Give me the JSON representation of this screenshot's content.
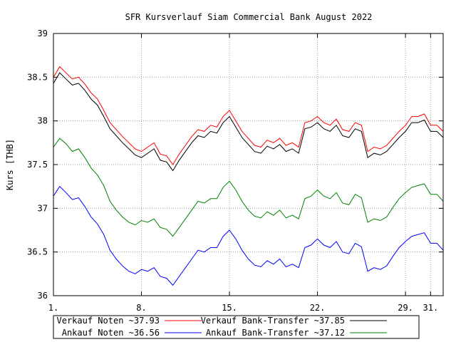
{
  "chart_data": {
    "type": "line",
    "title": "SFR Kursverlauf Siam Commercial Bank August 2022",
    "ylabel": "Kurs [THB]",
    "xlabel": "",
    "xlim": [
      1,
      32
    ],
    "ylim": [
      36,
      39
    ],
    "x_ticks": [
      {
        "x": 1,
        "label": "1."
      },
      {
        "x": 8,
        "label": "8."
      },
      {
        "x": 15,
        "label": "15."
      },
      {
        "x": 22,
        "label": "22."
      },
      {
        "x": 29,
        "label": "29."
      },
      {
        "x": 31,
        "label": "31."
      }
    ],
    "y_ticks": [
      36,
      36.5,
      37,
      37.5,
      38,
      38.5,
      39
    ],
    "grid": true,
    "legend_position": "bottom",
    "series": [
      {
        "name": "Verkauf Noten ~37.93",
        "color": "#ff0000",
        "x": [
          1,
          1.5,
          2,
          2.5,
          3,
          3.5,
          4,
          4.5,
          5,
          5.5,
          6,
          6.5,
          7,
          7.5,
          8,
          8.5,
          9,
          9.5,
          10,
          10.5,
          11,
          11.5,
          12,
          12.5,
          13,
          13.5,
          14,
          14.5,
          15,
          15.5,
          16,
          16.5,
          17,
          17.5,
          18,
          18.5,
          19,
          19.5,
          20,
          20.5,
          21,
          21.5,
          22,
          22.5,
          23,
          23.5,
          24,
          24.5,
          25,
          25.5,
          26,
          26.5,
          27,
          27.5,
          28,
          28.5,
          29,
          29.5,
          30,
          30.5,
          31,
          31.5,
          32
        ],
        "values": [
          38.5,
          38.62,
          38.55,
          38.48,
          38.5,
          38.42,
          38.32,
          38.25,
          38.12,
          37.98,
          37.9,
          37.82,
          37.75,
          37.68,
          37.65,
          37.7,
          37.75,
          37.62,
          37.6,
          37.5,
          37.62,
          37.72,
          37.82,
          37.9,
          37.88,
          37.95,
          37.93,
          38.05,
          38.12,
          38.0,
          37.88,
          37.8,
          37.72,
          37.7,
          37.78,
          37.75,
          37.8,
          37.72,
          37.75,
          37.7,
          37.98,
          38.0,
          38.05,
          37.98,
          37.95,
          38.02,
          37.9,
          37.88,
          37.98,
          37.95,
          37.65,
          37.7,
          37.68,
          37.72,
          37.8,
          37.88,
          37.95,
          38.05,
          38.05,
          38.08,
          37.95,
          37.95,
          37.88
        ]
      },
      {
        "name": "Verkauf Bank-Transfer ~37.85",
        "color": "#000000",
        "x": [
          1,
          1.5,
          2,
          2.5,
          3,
          3.5,
          4,
          4.5,
          5,
          5.5,
          6,
          6.5,
          7,
          7.5,
          8,
          8.5,
          9,
          9.5,
          10,
          10.5,
          11,
          11.5,
          12,
          12.5,
          13,
          13.5,
          14,
          14.5,
          15,
          15.5,
          16,
          16.5,
          17,
          17.5,
          18,
          18.5,
          19,
          19.5,
          20,
          20.5,
          21,
          21.5,
          22,
          22.5,
          23,
          23.5,
          24,
          24.5,
          25,
          25.5,
          26,
          26.5,
          27,
          27.5,
          28,
          28.5,
          29,
          29.5,
          30,
          30.5,
          31,
          31.5,
          32
        ],
        "values": [
          38.43,
          38.55,
          38.48,
          38.41,
          38.43,
          38.35,
          38.25,
          38.18,
          38.05,
          37.91,
          37.83,
          37.75,
          37.68,
          37.61,
          37.58,
          37.63,
          37.68,
          37.55,
          37.53,
          37.43,
          37.55,
          37.65,
          37.75,
          37.83,
          37.81,
          37.88,
          37.86,
          37.98,
          38.05,
          37.93,
          37.81,
          37.73,
          37.65,
          37.63,
          37.71,
          37.68,
          37.73,
          37.65,
          37.68,
          37.63,
          37.91,
          37.93,
          37.98,
          37.91,
          37.88,
          37.95,
          37.83,
          37.81,
          37.91,
          37.88,
          37.58,
          37.63,
          37.61,
          37.65,
          37.73,
          37.81,
          37.88,
          37.98,
          37.98,
          38.01,
          37.88,
          37.88,
          37.81
        ]
      },
      {
        "name": "Ankauf Noten ~36.56",
        "color": "#0000ff",
        "x": [
          1,
          1.5,
          2,
          2.5,
          3,
          3.5,
          4,
          4.5,
          5,
          5.5,
          6,
          6.5,
          7,
          7.5,
          8,
          8.5,
          9,
          9.5,
          10,
          10.5,
          11,
          11.5,
          12,
          12.5,
          13,
          13.5,
          14,
          14.5,
          15,
          15.5,
          16,
          16.5,
          17,
          17.5,
          18,
          18.5,
          19,
          19.5,
          20,
          20.5,
          21,
          21.5,
          22,
          22.5,
          23,
          23.5,
          24,
          24.5,
          25,
          25.5,
          26,
          26.5,
          27,
          27.5,
          28,
          28.5,
          29,
          29.5,
          30,
          30.5,
          31,
          31.5,
          32
        ],
        "values": [
          37.14,
          37.25,
          37.18,
          37.1,
          37.12,
          37.02,
          36.9,
          36.82,
          36.7,
          36.52,
          36.42,
          36.34,
          36.28,
          36.25,
          36.3,
          36.28,
          36.32,
          36.22,
          36.2,
          36.12,
          36.22,
          36.32,
          36.42,
          36.52,
          36.5,
          36.55,
          36.55,
          36.68,
          36.75,
          36.65,
          36.52,
          36.42,
          36.35,
          36.33,
          36.4,
          36.36,
          36.42,
          36.33,
          36.36,
          36.32,
          36.55,
          36.58,
          36.65,
          36.58,
          36.55,
          36.62,
          36.5,
          36.48,
          36.6,
          36.56,
          36.28,
          36.32,
          36.3,
          36.34,
          36.45,
          36.55,
          36.62,
          36.68,
          36.7,
          36.72,
          36.6,
          36.6,
          36.52
        ]
      },
      {
        "name": "Ankauf Bank-Transfer ~37.12",
        "color": "#008000",
        "x": [
          1,
          1.5,
          2,
          2.5,
          3,
          3.5,
          4,
          4.5,
          5,
          5.5,
          6,
          6.5,
          7,
          7.5,
          8,
          8.5,
          9,
          9.5,
          10,
          10.5,
          11,
          11.5,
          12,
          12.5,
          13,
          13.5,
          14,
          14.5,
          15,
          15.5,
          16,
          16.5,
          17,
          17.5,
          18,
          18.5,
          19,
          19.5,
          20,
          20.5,
          21,
          21.5,
          22,
          22.5,
          23,
          23.5,
          24,
          24.5,
          25,
          25.5,
          26,
          26.5,
          27,
          27.5,
          28,
          28.5,
          29,
          29.5,
          30,
          30.5,
          31,
          31.5,
          32
        ],
        "values": [
          37.7,
          37.8,
          37.74,
          37.65,
          37.68,
          37.58,
          37.46,
          37.38,
          37.26,
          37.08,
          36.98,
          36.9,
          36.84,
          36.81,
          36.86,
          36.84,
          36.88,
          36.78,
          36.76,
          36.68,
          36.78,
          36.88,
          36.98,
          37.08,
          37.06,
          37.11,
          37.11,
          37.24,
          37.31,
          37.21,
          37.08,
          36.98,
          36.91,
          36.89,
          36.96,
          36.92,
          36.98,
          36.89,
          36.92,
          36.88,
          37.11,
          37.14,
          37.21,
          37.14,
          37.11,
          37.18,
          37.06,
          37.04,
          37.16,
          37.12,
          36.84,
          36.88,
          36.86,
          36.9,
          37.01,
          37.11,
          37.18,
          37.24,
          37.26,
          37.28,
          37.16,
          37.16,
          37.08
        ]
      }
    ]
  }
}
